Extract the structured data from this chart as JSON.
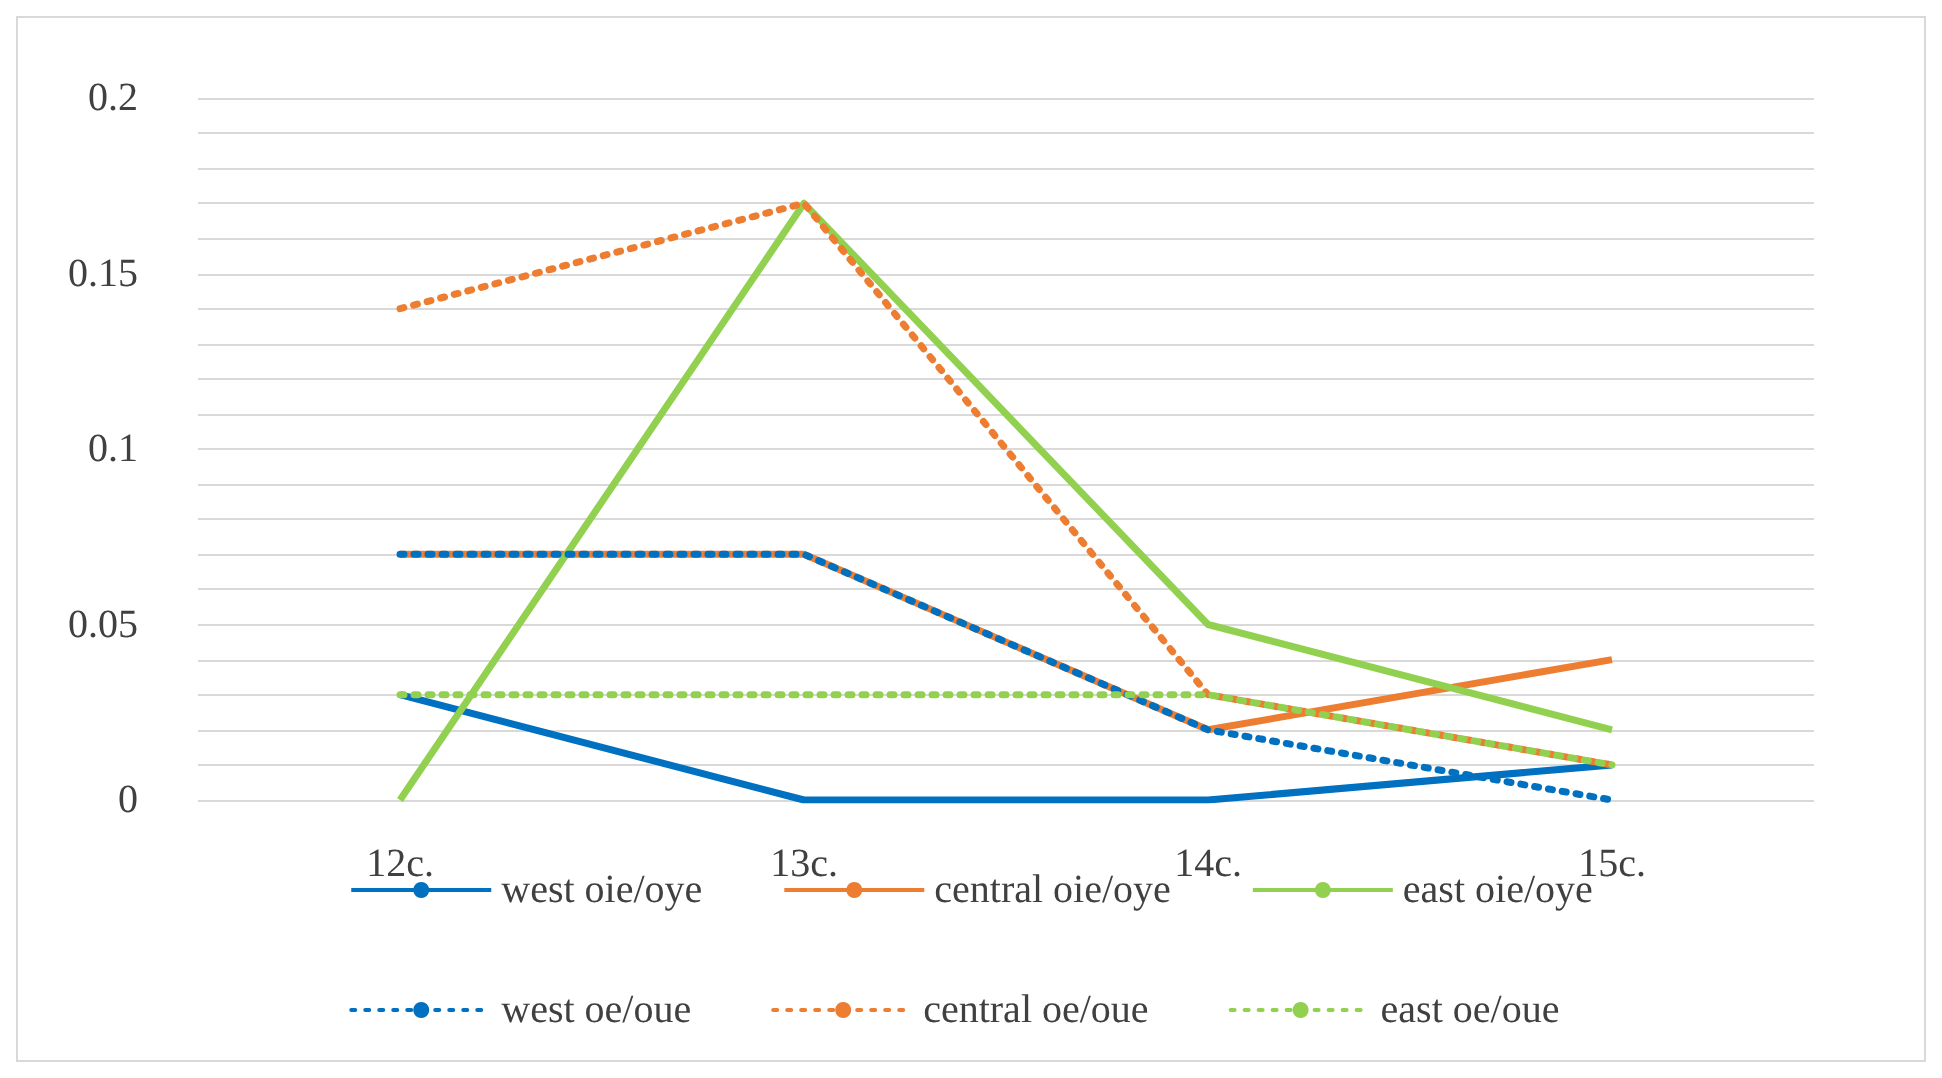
{
  "chart_data": {
    "type": "line",
    "categories": [
      "12c.",
      "13c.",
      "14c.",
      "15c."
    ],
    "ylim": [
      0,
      0.2
    ],
    "yticks": [
      0,
      {
        "value": 0.01,
        "label": null
      },
      {
        "value": 0.02,
        "label": null
      },
      {
        "value": 0.03,
        "label": null
      },
      {
        "value": 0.04,
        "label": null
      },
      0.05,
      {
        "value": 0.06,
        "label": null
      },
      {
        "value": 0.07,
        "label": null
      },
      {
        "value": 0.08,
        "label": null
      },
      {
        "value": 0.09,
        "label": null
      },
      0.1,
      {
        "value": 0.11,
        "label": null
      },
      {
        "value": 0.12,
        "label": null
      },
      {
        "value": 0.13,
        "label": null
      },
      {
        "value": 0.14,
        "label": null
      },
      0.15,
      {
        "value": 0.16,
        "label": null
      },
      {
        "value": 0.17,
        "label": null
      },
      {
        "value": 0.18,
        "label": null
      },
      {
        "value": 0.19,
        "label": null
      },
      0.2
    ],
    "grid": "y",
    "legend": "bottom",
    "marker": "none",
    "series": [
      {
        "name": "west oie/oye",
        "color": "#0070c0",
        "line_style": "solid",
        "values": [
          0.03,
          0,
          0,
          0.01
        ]
      },
      {
        "name": "central oie/oye",
        "color": "#ed7d31",
        "line_style": "solid",
        "values": [
          0.07,
          0.07,
          0.02,
          0.04
        ]
      },
      {
        "name": "east oie/oye",
        "color": "#92d050",
        "line_style": "solid",
        "values": [
          0,
          0.17,
          0.05,
          0.02
        ]
      },
      {
        "name": "west oe/oue",
        "color": "#0070c0",
        "line_style": "dotted",
        "values": [
          0.07,
          0.07,
          0.02,
          0
        ]
      },
      {
        "name": "central oe/oue",
        "color": "#ed7d31",
        "line_style": "dotted",
        "values": [
          0.14,
          0.17,
          0.03,
          0.01
        ]
      },
      {
        "name": "east oe/oue",
        "color": "#92d050",
        "line_style": "dotted",
        "values": [
          0.03,
          0.03,
          0.03,
          0.01
        ]
      }
    ]
  }
}
